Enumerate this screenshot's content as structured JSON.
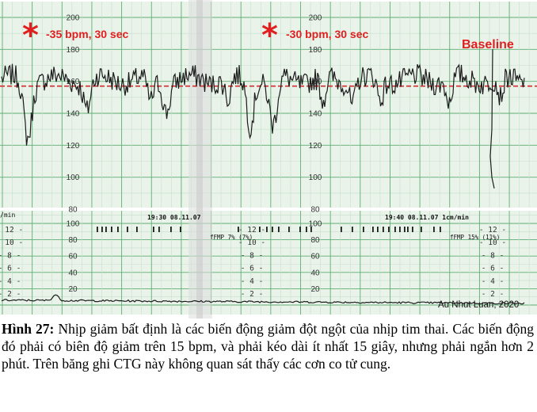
{
  "colors": {
    "paper": "#e9f3ea",
    "grid_fine": "#c7e0cb",
    "grid_major": "#5fae72",
    "trace": "#1b1b1b",
    "baseline": "#d42a2a",
    "annotation": "#e02020",
    "fold": "#dcdcdc"
  },
  "annotations": [
    {
      "label": "-35 bpm, 30 sec",
      "icon": "asterisk-icon"
    },
    {
      "label": "-30 bpm, 30 sec",
      "icon": "asterisk-icon"
    }
  ],
  "baseline_label": "Baseline",
  "credit": "Au Nhut Luan, 2020",
  "timestamps": [
    "19:30  08.11.07",
    "19:40  08.11.07  1cm/min"
  ],
  "fmp_labels": [
    "fFMP  7% (7%)",
    "fFMP  15% (11%)"
  ],
  "left_unit": "/min",
  "caption": {
    "label": "Hình 27:",
    "text": " Nhịp giảm bất định là các biến động giảm đột ngột của nhịp tim thai. Các biến động đó phải có biên độ giảm trên 15 bpm, và phải kéo dài ít nhất 15 giây, nhưng phải ngắn hơn 2 phút. Trên băng ghi CTG này không quan sát thấy các cơn co tử cung."
  },
  "chart_data": [
    {
      "type": "line",
      "name": "fetal-heart-rate",
      "ylim": [
        60,
        200
      ],
      "ytick_labels": [
        200,
        180,
        160,
        140,
        120,
        100,
        80
      ],
      "baseline_bpm": 157,
      "duration_min": 20,
      "decelerations": [
        {
          "label": "-35 bpm, 30 sec",
          "amplitude_bpm": 35,
          "duration_sec": 30
        },
        {
          "label": "-30 bpm, 30 sec",
          "amplitude_bpm": 30,
          "duration_sec": 30
        }
      ]
    },
    {
      "type": "line",
      "name": "uterine-activity",
      "ylim": [
        0,
        100
      ],
      "ytick_labels": [
        100,
        80,
        60,
        40,
        20
      ],
      "side_scale_labels": [
        12,
        10,
        8,
        6,
        4,
        2
      ]
    }
  ]
}
